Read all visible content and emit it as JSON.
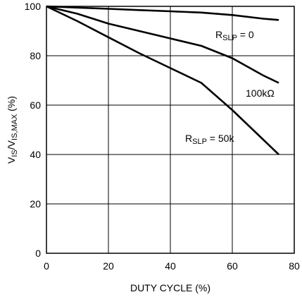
{
  "chart_data": {
    "type": "line",
    "xlabel": "DUTY CYCLE (%)",
    "ylabel": {
      "main": "V",
      "sub1": "IS",
      "mid": "/V",
      "sub2": "IS,MAX",
      "unit": " (%)"
    },
    "xlim": [
      0,
      80
    ],
    "ylim": [
      0,
      100
    ],
    "xticks": [
      "0",
      "20",
      "40",
      "60",
      "80"
    ],
    "yticks": [
      "0",
      "20",
      "40",
      "60",
      "80",
      "100"
    ],
    "grid": true,
    "series": [
      {
        "label": {
          "main": "R",
          "sub": "SLP",
          "rest": " = 0"
        },
        "x": [
          0,
          10,
          20,
          30,
          40,
          50,
          60,
          70,
          75
        ],
        "y": [
          100,
          99.5,
          99,
          98.5,
          98,
          97.5,
          96.5,
          95,
          94.5
        ]
      },
      {
        "label": {
          "main": "100kΩ",
          "sub": "",
          "rest": ""
        },
        "x": [
          0,
          10,
          20,
          30,
          40,
          50,
          60,
          70,
          75
        ],
        "y": [
          100,
          97,
          93,
          90,
          87,
          84,
          79,
          72,
          69
        ]
      },
      {
        "label": {
          "main": "R",
          "sub": "SLP",
          "rest": " = 50k"
        },
        "x": [
          0,
          10,
          20,
          30,
          40,
          50,
          60,
          70,
          75
        ],
        "y": [
          100,
          94,
          87.5,
          81,
          75,
          69,
          58,
          46,
          40
        ]
      }
    ]
  }
}
